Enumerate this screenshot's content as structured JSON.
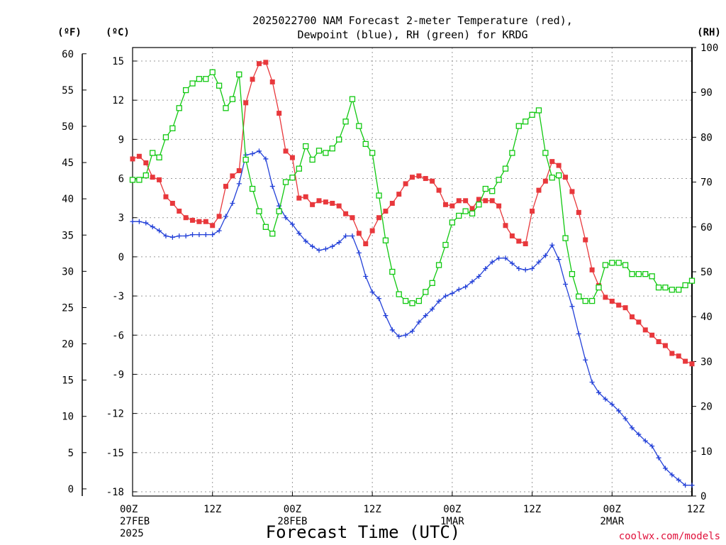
{
  "chart_data": {
    "type": "line",
    "title": "2025022700 NAM Forecast 2-meter Temperature (red),",
    "subtitle": "Dewpoint (blue), RH (green) for KRDG",
    "xlabel": "Forecast Time (UTC)",
    "credit": "coolwx.com/models",
    "units": {
      "left_outer": "(ºF)",
      "left_inner": "(ºC)",
      "right": "(RH)"
    },
    "x_ticks": [
      {
        "h": 0,
        "label": "00Z",
        "date": "27FEB",
        "year": "2025"
      },
      {
        "h": 12,
        "label": "12Z"
      },
      {
        "h": 24,
        "label": "00Z",
        "date": "28FEB"
      },
      {
        "h": 36,
        "label": "12Z"
      },
      {
        "h": 48,
        "label": "00Z",
        "date": "1MAR"
      },
      {
        "h": 60,
        "label": "12Z"
      },
      {
        "h": 72,
        "label": "00Z",
        "date": "2MAR"
      },
      {
        "h": 84,
        "label": "12Z"
      }
    ],
    "celsius_ticks": [
      15,
      12,
      9,
      6,
      3,
      0,
      -3,
      -6,
      -9,
      -12,
      -15,
      -18
    ],
    "fahrenheit_ticks": [
      60,
      55,
      50,
      45,
      40,
      35,
      30,
      25,
      20,
      15,
      10,
      5,
      0
    ],
    "rh_ticks": [
      100,
      90,
      80,
      70,
      60,
      50,
      40,
      30,
      20,
      10,
      0
    ],
    "ylim_c": [
      -18,
      15
    ],
    "ylim_rh": [
      0,
      100
    ],
    "xlim_hours": [
      0,
      84
    ],
    "grid": true,
    "series": [
      {
        "name": "Temperature",
        "color": "#e8383c",
        "marker": "filled-square",
        "x": [
          0,
          1,
          2,
          3,
          4,
          5,
          6,
          7,
          8,
          9,
          10,
          11,
          12,
          13,
          14,
          15,
          16,
          17,
          18,
          19,
          20,
          21,
          22,
          23,
          24,
          25,
          26,
          27,
          28,
          29,
          30,
          31,
          32,
          33,
          34,
          35,
          36,
          37,
          38,
          39,
          40,
          41,
          42,
          43,
          44,
          45,
          46,
          47,
          48,
          49,
          50,
          51,
          52,
          53,
          54,
          55,
          56,
          57,
          58,
          59,
          60,
          61,
          62,
          63,
          64,
          65,
          66,
          67,
          68,
          69,
          70,
          71,
          72,
          73,
          74,
          75,
          76,
          77,
          78,
          79,
          80,
          81,
          82,
          83,
          84
        ],
        "values": [
          7.5,
          7.7,
          7.2,
          6.1,
          5.9,
          4.6,
          4.1,
          3.5,
          3.0,
          2.8,
          2.7,
          2.7,
          2.4,
          3.1,
          5.4,
          6.2,
          6.6,
          11.8,
          13.6,
          14.8,
          14.9,
          13.4,
          11.0,
          8.1,
          7.6,
          4.5,
          4.6,
          4.0,
          4.3,
          4.2,
          4.1,
          3.9,
          3.3,
          3.0,
          1.8,
          1.0,
          2.0,
          3.0,
          3.5,
          4.1,
          4.8,
          5.6,
          6.1,
          6.2,
          6.0,
          5.8,
          5.1,
          4.0,
          3.9,
          4.3,
          4.3,
          3.7,
          4.4,
          4.3,
          4.3,
          3.9,
          2.4,
          1.6,
          1.2,
          1.0,
          3.5,
          5.1,
          5.8,
          7.3,
          7.0,
          6.1,
          5.0,
          3.4,
          1.3,
          -1.0,
          -2.2,
          -3.1,
          -3.4,
          -3.7,
          -3.9,
          -4.6,
          -5.0,
          -5.6,
          -6.0,
          -6.5,
          -6.8,
          -7.4,
          -7.6,
          -8.0,
          -8.2
        ]
      },
      {
        "name": "Dewpoint",
        "color": "#2340d8",
        "marker": "plus",
        "x": [
          0,
          1,
          2,
          3,
          4,
          5,
          6,
          7,
          8,
          9,
          10,
          11,
          12,
          13,
          14,
          15,
          16,
          17,
          18,
          19,
          20,
          21,
          22,
          23,
          24,
          25,
          26,
          27,
          28,
          29,
          30,
          31,
          32,
          33,
          34,
          35,
          36,
          37,
          38,
          39,
          40,
          41,
          42,
          43,
          44,
          45,
          46,
          47,
          48,
          49,
          50,
          51,
          52,
          53,
          54,
          55,
          56,
          57,
          58,
          59,
          60,
          61,
          62,
          63,
          64,
          65,
          66,
          67,
          68,
          69,
          70,
          71,
          72,
          73,
          74,
          75,
          76,
          77,
          78,
          79,
          80,
          81,
          82,
          83,
          84
        ],
        "values": [
          2.7,
          2.7,
          2.6,
          2.3,
          2.0,
          1.6,
          1.5,
          1.6,
          1.6,
          1.7,
          1.7,
          1.7,
          1.7,
          2.0,
          3.1,
          4.1,
          5.6,
          7.8,
          7.9,
          8.1,
          7.5,
          5.4,
          3.9,
          3.0,
          2.5,
          1.8,
          1.2,
          0.8,
          0.5,
          0.6,
          0.8,
          1.1,
          1.6,
          1.6,
          0.3,
          -1.5,
          -2.7,
          -3.2,
          -4.5,
          -5.6,
          -6.1,
          -6.0,
          -5.7,
          -5.0,
          -4.5,
          -4.0,
          -3.4,
          -3.0,
          -2.8,
          -2.5,
          -2.3,
          -1.9,
          -1.5,
          -0.9,
          -0.4,
          -0.1,
          -0.1,
          -0.5,
          -0.9,
          -1.0,
          -0.9,
          -0.4,
          0.1,
          0.9,
          -0.2,
          -2.1,
          -3.8,
          -5.9,
          -7.9,
          -9.6,
          -10.4,
          -10.9,
          -11.3,
          -11.8,
          -12.4,
          -13.1,
          -13.6,
          -14.1,
          -14.5,
          -15.4,
          -16.2,
          -16.7,
          -17.1,
          -17.5,
          -17.5
        ]
      },
      {
        "name": "RH",
        "color": "#10c810",
        "marker": "open-square",
        "x": [
          0,
          1,
          2,
          3,
          4,
          5,
          6,
          7,
          8,
          9,
          10,
          11,
          12,
          13,
          14,
          15,
          16,
          17,
          18,
          19,
          20,
          21,
          22,
          23,
          24,
          25,
          26,
          27,
          28,
          29,
          30,
          31,
          32,
          33,
          34,
          35,
          36,
          37,
          38,
          39,
          40,
          41,
          42,
          43,
          44,
          45,
          46,
          47,
          48,
          49,
          50,
          51,
          52,
          53,
          54,
          55,
          56,
          57,
          58,
          59,
          60,
          61,
          62,
          63,
          64,
          65,
          66,
          67,
          68,
          69,
          70,
          71,
          72,
          73,
          74,
          75,
          76,
          77,
          78,
          79,
          80,
          81,
          82,
          83,
          84
        ],
        "values": [
          70.5,
          70.5,
          71.5,
          76.5,
          75.5,
          80.0,
          82.0,
          86.5,
          90.5,
          92.0,
          93.0,
          93.0,
          94.5,
          91.5,
          86.5,
          88.5,
          94.0,
          75.0,
          68.5,
          63.5,
          60.0,
          58.5,
          63.5,
          70.0,
          71.0,
          73.0,
          78.0,
          75.0,
          77.0,
          76.5,
          77.5,
          79.5,
          83.5,
          88.5,
          82.5,
          78.5,
          76.5,
          67.0,
          57.0,
          50.0,
          45.0,
          43.5,
          43.0,
          43.5,
          45.5,
          47.5,
          51.5,
          56.0,
          61.0,
          62.5,
          63.5,
          63.0,
          65.0,
          68.5,
          68.0,
          70.5,
          73.0,
          76.5,
          82.5,
          83.5,
          85.0,
          86.0,
          76.5,
          71.0,
          71.5,
          57.5,
          49.5,
          44.5,
          43.5,
          43.5,
          46.5,
          51.5,
          52.0,
          52.0,
          51.5,
          49.5,
          49.5,
          49.5,
          49.0,
          46.5,
          46.5,
          46.0,
          46.0,
          47.0,
          48.0
        ]
      }
    ]
  }
}
